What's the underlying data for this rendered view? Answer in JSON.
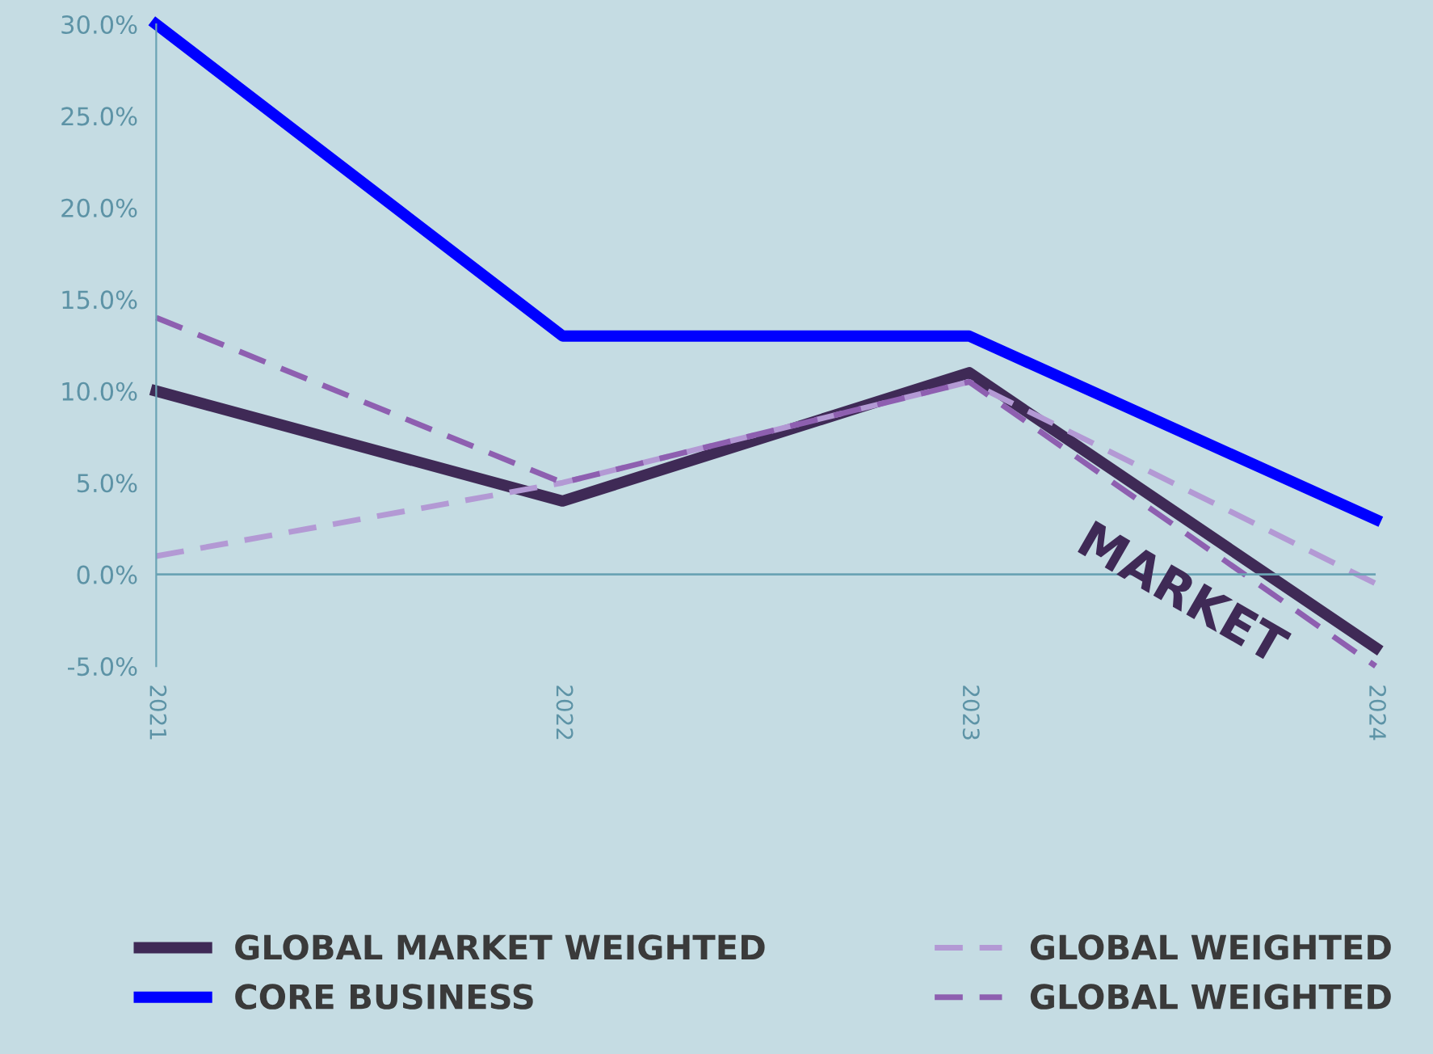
{
  "chart_data": {
    "type": "line",
    "x": [
      2021,
      2022,
      2023,
      2024
    ],
    "series": [
      {
        "name": "GLOBAL MARKET WEIGHTED",
        "color": "#3f2a56",
        "values": [
          10,
          4,
          11,
          -4
        ],
        "line_style": "solid"
      },
      {
        "name": "CORE BUSINESS",
        "color": "#0000ff",
        "values": [
          30,
          13,
          13,
          3
        ],
        "line_style": "solid"
      },
      {
        "name": "GLOBAL WEIGHTED",
        "color": "#b399d4",
        "values": [
          1,
          5,
          10.5,
          -0.5
        ],
        "line_style": "dashed"
      },
      {
        "name": "GLOBAL WEIGHTED",
        "color": "#8e5fb0",
        "values": [
          14,
          5,
          10.5,
          -5
        ],
        "line_style": "dashed"
      }
    ],
    "xlim": [
      2021,
      2024
    ],
    "xticks": [
      2021,
      2022,
      2023,
      2024
    ],
    "ylim": [
      -5,
      30
    ],
    "yticks": [
      {
        "value": -5,
        "label": "-5.0%"
      },
      {
        "value": 0,
        "label": "0.0%"
      },
      {
        "value": 5,
        "label": "5.0%"
      },
      {
        "value": 10,
        "label": "10.0%"
      },
      {
        "value": 15,
        "label": "15.0%"
      },
      {
        "value": 20,
        "label": "20.0%"
      },
      {
        "value": 25,
        "label": "25.0%"
      },
      {
        "value": 30,
        "label": "30.0%"
      }
    ],
    "annotations": [
      "MARKET"
    ],
    "ref_lines": [
      {
        "axis": "y",
        "value": 0,
        "color": "#6aa3b4"
      }
    ],
    "grid": false,
    "legend": "bottom",
    "marker": "none"
  }
}
